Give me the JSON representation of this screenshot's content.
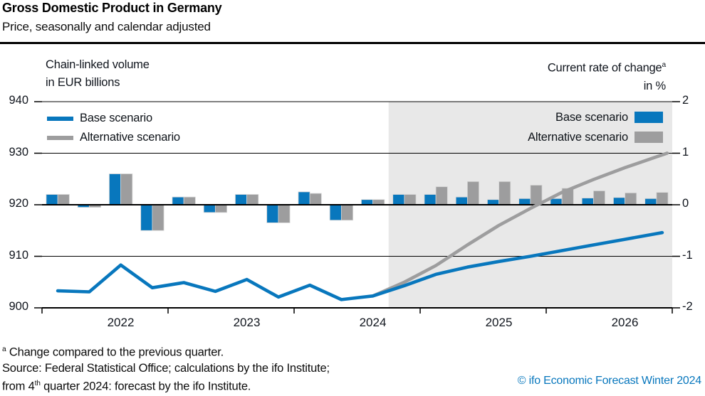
{
  "header": {
    "title": "Gross Domestic Product in Germany",
    "subtitle": "Price, seasonally and calendar adjusted"
  },
  "left_axis_header": {
    "line1": "Chain-linked volume",
    "line2": "in EUR billions"
  },
  "right_axis_header": {
    "line1": "Current rate of change",
    "sup": "a",
    "line2": "in %"
  },
  "legend_lines": {
    "base": "Base scenario",
    "alternative": "Alternative scenario"
  },
  "legend_bars": {
    "base": "Base scenario",
    "alternative": "Alternative scenario"
  },
  "footnotes": {
    "marker": "a",
    "line1": "Change compared to the previous quarter.",
    "line2": "Source: Federal Statistical Office; calculations by the ifo Institute;",
    "line3_part1": "from 4",
    "line3_sup": "th",
    "line3_part2": " quarter 2024: forecast by the ifo Institute."
  },
  "copyright": "© ifo Economic Forecast Winter 2024",
  "colors": {
    "base": "#0877bd",
    "alternative": "#9d9d9e",
    "forecast_bg": "#e8e8e8",
    "grid": "#000000",
    "bar_border": "#d6d6d6",
    "copyright": "#0877bd",
    "text": "#10151d"
  },
  "chart_data": {
    "type": "combo-line-bar",
    "title": "Gross Domestic Product in Germany",
    "quarters": [
      "2022Q1",
      "2022Q2",
      "2022Q3",
      "2022Q4",
      "2023Q1",
      "2023Q2",
      "2023Q3",
      "2023Q4",
      "2024Q1",
      "2024Q2",
      "2024Q3",
      "2024Q4",
      "2025Q1",
      "2025Q2",
      "2025Q3",
      "2025Q4",
      "2026Q1",
      "2026Q2",
      "2026Q3",
      "2026Q4"
    ],
    "x_year_labels": [
      "2022",
      "2023",
      "2024",
      "2025",
      "2026"
    ],
    "left_axis": {
      "label": "Chain-linked volume in EUR billions",
      "ticks": [
        940,
        930,
        920,
        910,
        900
      ],
      "range": [
        900,
        940
      ]
    },
    "right_axis": {
      "label": "Current rate of change in %",
      "ticks": [
        2,
        1,
        0,
        -1,
        -2
      ],
      "range": [
        -2,
        2
      ]
    },
    "grid": true,
    "legend_position": "top-inside",
    "forecast": {
      "start_quarter": "2024Q4",
      "start_index": 11,
      "shaded": true
    },
    "line_series": [
      {
        "name": "Base scenario",
        "color": "#0877bd",
        "start_index": 0,
        "values": [
          903.3,
          903.1,
          908.3,
          903.9,
          904.9,
          903.2,
          905.5,
          902.1,
          904.4,
          901.6,
          902.3,
          904.3,
          906.5,
          907.9,
          909.0,
          910.0,
          911.1,
          912.2,
          913.3,
          914.4
        ]
      },
      {
        "name": "Alternative scenario",
        "color": "#9d9d9e",
        "start_index": 10,
        "values": [
          902.3,
          905.0,
          908.2,
          912.2,
          916.0,
          919.3,
          922.4,
          924.9,
          927.2,
          929.3
        ]
      }
    ],
    "bar_series": [
      {
        "name": "Base scenario",
        "color": "#0877bd",
        "values": [
          0.2,
          -0.05,
          0.6,
          -0.5,
          0.15,
          -0.15,
          0.2,
          -0.35,
          0.25,
          -0.3,
          0.1,
          0.2,
          0.2,
          0.15,
          0.1,
          0.12,
          0.12,
          0.13,
          0.14,
          0.12
        ]
      },
      {
        "name": "Alternative scenario",
        "color": "#9d9d9e",
        "values": [
          0.2,
          -0.05,
          0.6,
          -0.5,
          0.15,
          -0.15,
          0.2,
          -0.35,
          0.22,
          -0.3,
          0.1,
          0.2,
          0.35,
          0.45,
          0.45,
          0.38,
          0.32,
          0.27,
          0.23,
          0.24
        ]
      }
    ]
  }
}
